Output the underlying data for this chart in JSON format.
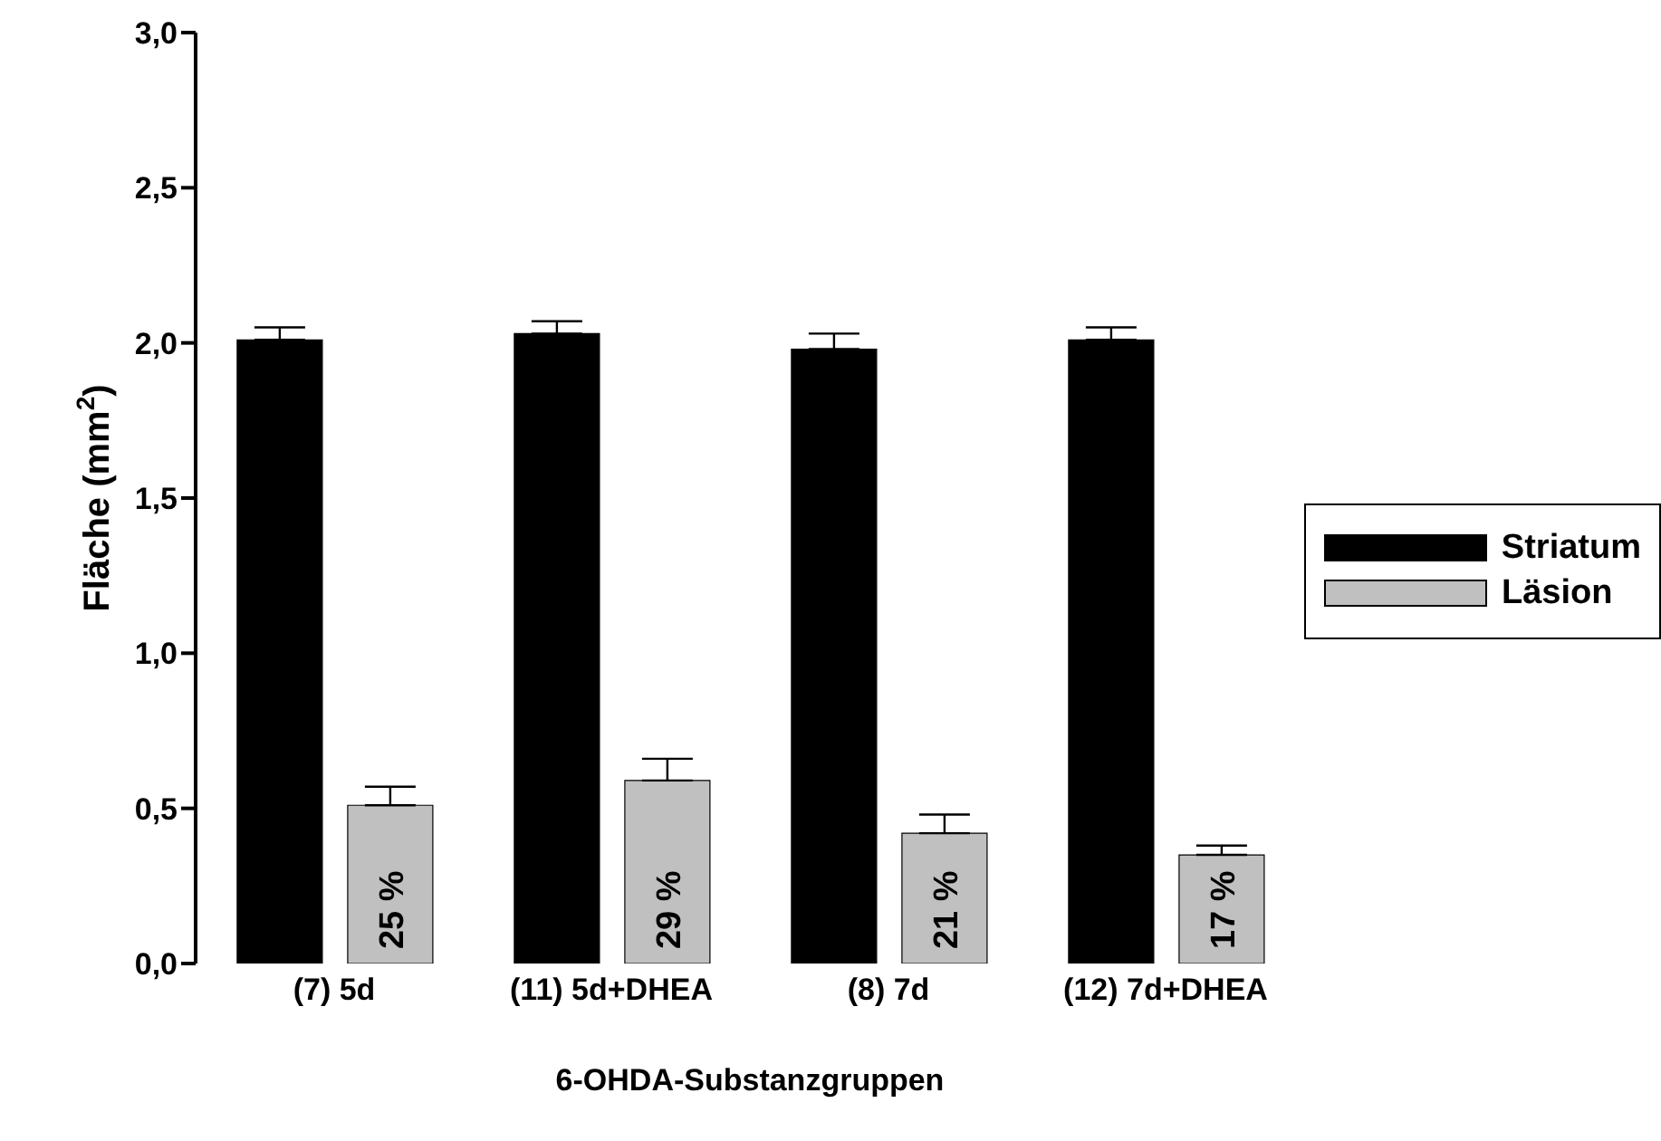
{
  "chart_data": {
    "type": "bar",
    "xlabel": "6-OHDA-Substanzgruppen",
    "ylabel": "Fläche (mm$^{2}$)",
    "categories": [
      "(7) 5d",
      "(11) 5d+DHEA",
      "(8) 7d",
      "(12) 7d+DHEA"
    ],
    "series": [
      {
        "name": "Striatum",
        "color": "#000000",
        "values": [
          2.01,
          2.03,
          1.98,
          2.01
        ],
        "errors": [
          [
            2.01,
            2.05
          ],
          [
            2.03,
            2.07
          ],
          [
            1.98,
            2.03
          ],
          [
            2.01,
            2.05
          ]
        ]
      },
      {
        "name": "Läsion",
        "color": "#c0c0c0",
        "values": [
          0.51,
          0.59,
          0.42,
          0.35
        ],
        "errors": [
          [
            0.51,
            0.57
          ],
          [
            0.59,
            0.66
          ],
          [
            0.42,
            0.48
          ],
          [
            0.35,
            0.38
          ]
        ]
      }
    ],
    "annotations": [
      "25 %",
      "29 %",
      "21 %",
      "17 %"
    ],
    "ylim": [
      0,
      3
    ],
    "yticks": [
      {
        "value": 0,
        "label": "0,0"
      },
      {
        "value": 0.5,
        "label": "0,5"
      },
      {
        "value": 1,
        "label": "1,0"
      },
      {
        "value": 1.5,
        "label": "1,5"
      },
      {
        "value": 2,
        "label": "2,0"
      },
      {
        "value": 2.5,
        "label": "2,5"
      },
      {
        "value": 3,
        "label": "3,0"
      }
    ],
    "legend": "right"
  }
}
